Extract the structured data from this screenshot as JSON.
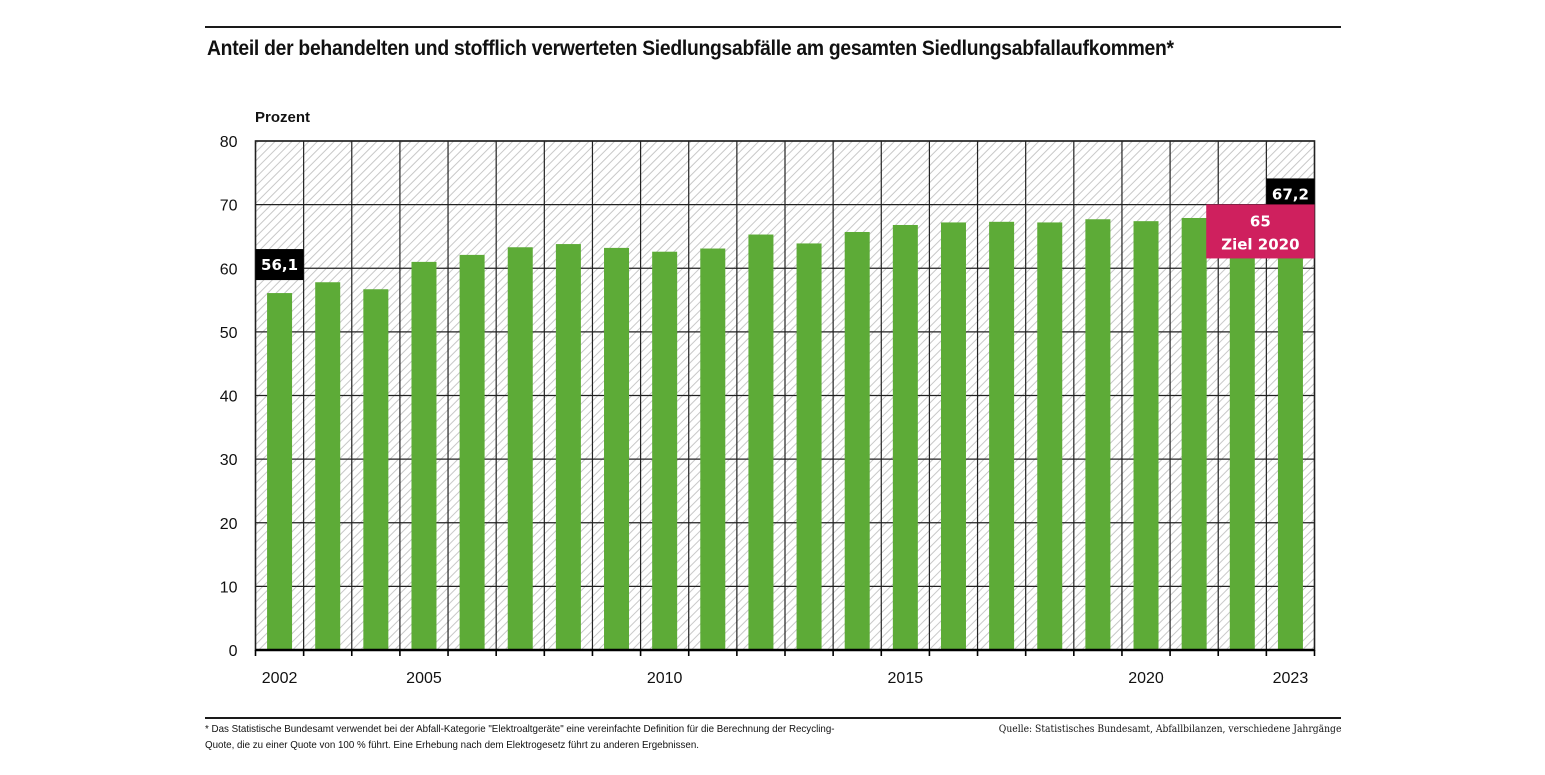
{
  "title": "Anteil der behandelten und stofflich verwerteten Siedlungsabfälle am gesamten Siedlungsabfallaufkommen*",
  "footnote": "* Das Statistische Bundesamt verwendet bei der Abfall-Kategorie \"Elektroaltgeräte\" eine vereinfachte Definition für die Berechnung der Recycling-Quote, die zu einer Quote von 100 % führt. Eine Erhebung nach dem Elektrogesetz führt zu anderen Ergebnissen.",
  "source": "Quelle: Statistisches Bundesamt, Abfallbilanzen, verschiedene Jahrgänge",
  "colors": {
    "bar": "#5dab37",
    "target_box": "#cf205e",
    "label_box": "#000000",
    "grid": "#222222",
    "hatch": "#c8c8c8"
  },
  "chart_data": {
    "type": "bar",
    "title": "Anteil der behandelten und stofflich verwerteten Siedlungsabfälle am gesamten Siedlungsabfallaufkommen*",
    "xlabel": "",
    "ylabel": "Prozent",
    "ylim": [
      0,
      80
    ],
    "yticks": [
      0,
      10,
      20,
      30,
      40,
      50,
      60,
      70,
      80
    ],
    "categories": [
      "2002",
      "2003",
      "2004",
      "2005",
      "2006",
      "2007",
      "2008",
      "2009",
      "2010",
      "2011",
      "2012",
      "2013",
      "2014",
      "2015",
      "2016",
      "2017",
      "2018",
      "2019",
      "2020",
      "2021",
      "2022",
      "2023"
    ],
    "xtick_labels": {
      "2002": "2002",
      "2005": "2005",
      "2010": "2010",
      "2015": "2015",
      "2020": "2020",
      "2023": "2023"
    },
    "values": [
      56.1,
      57.8,
      56.7,
      61.0,
      62.1,
      63.3,
      63.8,
      63.2,
      62.6,
      63.1,
      65.3,
      63.9,
      65.7,
      66.8,
      67.2,
      67.3,
      67.2,
      67.7,
      67.4,
      67.9,
      67.8,
      67.2
    ],
    "data_labels": [
      {
        "category": "2002",
        "text": "56,1"
      },
      {
        "category": "2023",
        "text": "67,2"
      }
    ],
    "annotations": [
      {
        "type": "target",
        "value": 65,
        "line1": "65",
        "line2": "Ziel 2020"
      }
    ],
    "grid": true,
    "background": "hatched"
  }
}
